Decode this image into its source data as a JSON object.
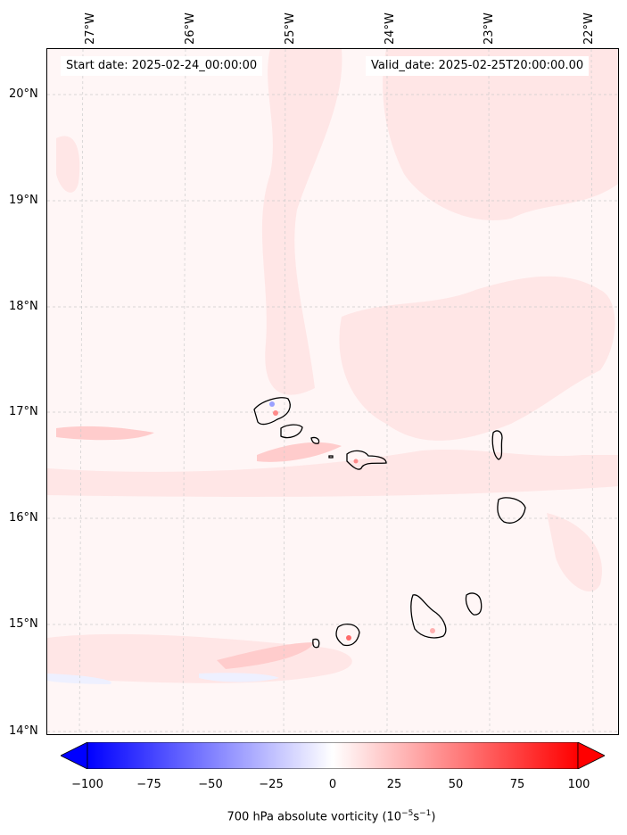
{
  "header": {
    "start_date": "Start date: 2025-02-24_00:00:00",
    "valid_date": "Valid_date: 2025-02-25T20:00:00.00"
  },
  "axes": {
    "longitude_labels": [
      "27°W",
      "26°W",
      "25°W",
      "24°W",
      "23°W",
      "22°W"
    ],
    "latitude_labels": [
      "20°N",
      "19°N",
      "18°N",
      "17°N",
      "16°N",
      "15°N",
      "14°N"
    ]
  },
  "colorbar": {
    "ticks": [
      "−100",
      "−75",
      "−50",
      "−25",
      "0",
      "25",
      "50",
      "75",
      "100"
    ],
    "label_prefix": "700 hPa absolute vorticity (10",
    "label_exp1": "−5",
    "label_mid": "s",
    "label_exp2": "−1",
    "label_suffix": ")",
    "min": -100,
    "max": 100,
    "colors": {
      "negative": "#0000ff",
      "zero": "#ffffff",
      "positive": "#ff0000"
    }
  },
  "map": {
    "background_color": "#fff6f6",
    "land_outline_color": "#000000",
    "grid": true
  }
}
